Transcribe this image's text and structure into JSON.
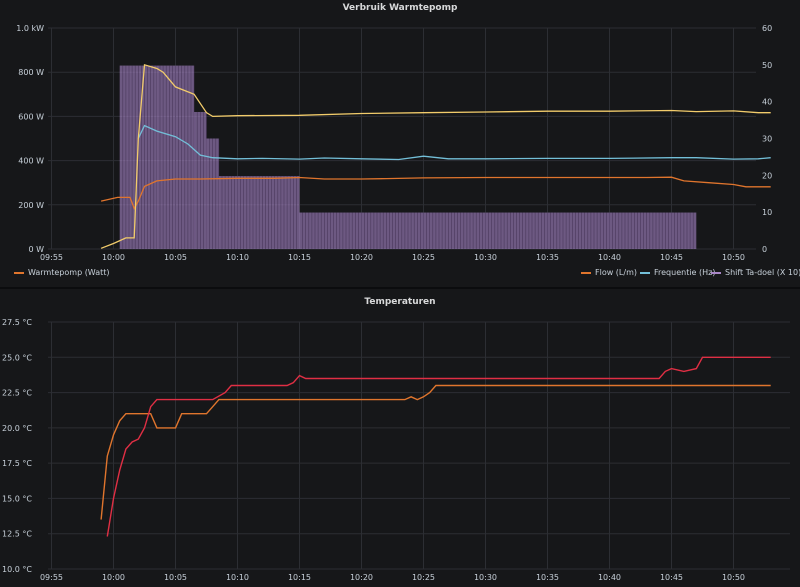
{
  "chart_data": [
    {
      "type": "bar+line",
      "title": "Verbruik Warmtepomp",
      "x_ticks": [
        "09:55",
        "10:00",
        "10:05",
        "10:10",
        "10:15",
        "10:20",
        "10:25",
        "10:30",
        "10:35",
        "10:40",
        "10:45",
        "10:50"
      ],
      "y_left_ticks": [
        "0 W",
        "200 W",
        "400 W",
        "600 W",
        "800 W",
        "1.0 kW"
      ],
      "y_left_lim": [
        0,
        1000
      ],
      "y_right_ticks": [
        "0",
        "10",
        "20",
        "30",
        "40",
        "50",
        "60"
      ],
      "y_right_lim": [
        0,
        60
      ],
      "grid": true,
      "legend_left": [
        {
          "name": "Warmtepomp (Watt)",
          "color": "#e0752d"
        }
      ],
      "legend_right": [
        {
          "name": "Flow (L/m)",
          "color": "#e0752d"
        },
        {
          "name": "Frequentie (Hz)",
          "color": "#73bfd8"
        },
        {
          "name": "Shift Ta-doel (X 10)",
          "color": "#a987c8"
        }
      ],
      "bars": {
        "name": "Warmtepomp (Watt)",
        "color": "#b68fd8",
        "segments": [
          {
            "start": "10:00:30",
            "end": "10:03:30",
            "value": 830
          },
          {
            "start": "10:03:30",
            "end": "10:06:30",
            "value": 830
          },
          {
            "start": "10:06:30",
            "end": "10:07:30",
            "value": 620
          },
          {
            "start": "10:07:30",
            "end": "10:08:30",
            "value": 500
          },
          {
            "start": "10:08:30",
            "end": "10:15:00",
            "value": 330
          },
          {
            "start": "10:15:00",
            "end": "10:47:00",
            "value": 165
          }
        ]
      },
      "series": [
        {
          "name": "Flow (L/m)",
          "axis": "right",
          "color": "#e0752d",
          "points": [
            [
              "09:59:00",
              13
            ],
            [
              "09:59:40",
              13.5
            ],
            [
              "10:00:20",
              14
            ],
            [
              "10:01:20",
              14
            ],
            [
              "10:01:40",
              11
            ],
            [
              "10:02:00",
              13
            ],
            [
              "10:02:30",
              17
            ],
            [
              "10:03:30",
              18.5
            ],
            [
              "10:05:00",
              19
            ],
            [
              "10:07:00",
              19
            ],
            [
              "10:10:00",
              19.2
            ],
            [
              "10:13:00",
              19.2
            ],
            [
              "10:15:00",
              19.4
            ],
            [
              "10:17:00",
              19
            ],
            [
              "10:20:00",
              19
            ],
            [
              "10:22:00",
              19.1
            ],
            [
              "10:25:00",
              19.3
            ],
            [
              "10:30:00",
              19.4
            ],
            [
              "10:35:00",
              19.4
            ],
            [
              "10:40:00",
              19.4
            ],
            [
              "10:43:00",
              19.4
            ],
            [
              "10:45:00",
              19.5
            ],
            [
              "10:46:00",
              18.5
            ],
            [
              "10:48:00",
              18
            ],
            [
              "10:50:00",
              17.5
            ],
            [
              "10:51:00",
              16.9
            ],
            [
              "10:53:00",
              16.9
            ]
          ]
        },
        {
          "name": "Frequentie (Hz)",
          "axis": "right",
          "color": "#73bfd8",
          "points": [
            [
              "10:02:00",
              30
            ],
            [
              "10:02:30",
              33.5
            ],
            [
              "10:03:30",
              32
            ],
            [
              "10:05:00",
              30.5
            ],
            [
              "10:06:00",
              28.5
            ],
            [
              "10:07:00",
              25.5
            ],
            [
              "10:08:00",
              24.8
            ],
            [
              "10:10:00",
              24.5
            ],
            [
              "10:12:00",
              24.6
            ],
            [
              "10:15:00",
              24.4
            ],
            [
              "10:17:00",
              24.7
            ],
            [
              "10:20:00",
              24.5
            ],
            [
              "10:23:00",
              24.3
            ],
            [
              "10:25:00",
              25.2
            ],
            [
              "10:27:00",
              24.5
            ],
            [
              "10:30:00",
              24.5
            ],
            [
              "10:35:00",
              24.6
            ],
            [
              "10:40:00",
              24.6
            ],
            [
              "10:45:00",
              24.8
            ],
            [
              "10:47:00",
              24.8
            ],
            [
              "10:50:00",
              24.4
            ],
            [
              "10:52:00",
              24.5
            ],
            [
              "10:53:00",
              24.8
            ]
          ]
        },
        {
          "name": "Shift Ta-doel (X 10)",
          "axis": "right",
          "color": "#f2cc6b",
          "points": [
            [
              "09:59:00",
              0.2
            ],
            [
              "10:00:00",
              1.5
            ],
            [
              "10:01:00",
              3
            ],
            [
              "10:01:40",
              3
            ],
            [
              "10:02:00",
              30
            ],
            [
              "10:02:30",
              50
            ],
            [
              "10:03:30",
              49
            ],
            [
              "10:04:00",
              48
            ],
            [
              "10:05:00",
              44
            ],
            [
              "10:06:30",
              42
            ],
            [
              "10:07:30",
              37
            ],
            [
              "10:08:00",
              36
            ],
            [
              "10:10:00",
              36.2
            ],
            [
              "10:15:00",
              36.3
            ],
            [
              "10:20:00",
              36.8
            ],
            [
              "10:25:00",
              37
            ],
            [
              "10:30:00",
              37.2
            ],
            [
              "10:35:00",
              37.4
            ],
            [
              "10:40:00",
              37.4
            ],
            [
              "10:45:00",
              37.6
            ],
            [
              "10:47:00",
              37.3
            ],
            [
              "10:50:00",
              37.5
            ],
            [
              "10:52:00",
              37
            ],
            [
              "10:53:00",
              37
            ]
          ]
        }
      ]
    },
    {
      "type": "line",
      "title": "Temperaturen",
      "x_ticks": [
        "09:55",
        "10:00",
        "10:05",
        "10:10",
        "10:15",
        "10:20",
        "10:25",
        "10:30",
        "10:35",
        "10:40",
        "10:45",
        "10:50"
      ],
      "y_ticks": [
        "10.0 °C",
        "12.5 °C",
        "15.0 °C",
        "17.5 °C",
        "20.0 °C",
        "22.5 °C",
        "25.0 °C",
        "27.5 °C"
      ],
      "ylim": [
        10,
        27.5
      ],
      "grid": true,
      "series": [
        {
          "color": "#e0752d",
          "points": [
            [
              "09:59:00",
              13.5
            ],
            [
              "09:59:30",
              18
            ],
            [
              "10:00:00",
              19.5
            ],
            [
              "10:00:30",
              20.5
            ],
            [
              "10:01:00",
              21
            ],
            [
              "10:03:00",
              21
            ],
            [
              "10:03:30",
              20
            ],
            [
              "10:05:00",
              20
            ],
            [
              "10:05:30",
              21
            ],
            [
              "10:07:30",
              21
            ],
            [
              "10:08:00",
              21.5
            ],
            [
              "10:08:30",
              22
            ],
            [
              "10:15:00",
              22
            ],
            [
              "10:20:00",
              22
            ],
            [
              "10:23:30",
              22
            ],
            [
              "10:24:00",
              22.2
            ],
            [
              "10:24:30",
              22
            ],
            [
              "10:25:00",
              22.2
            ],
            [
              "10:25:30",
              22.5
            ],
            [
              "10:26:00",
              23
            ],
            [
              "10:30:00",
              23
            ],
            [
              "10:40:00",
              23
            ],
            [
              "10:50:00",
              23
            ],
            [
              "10:53:00",
              23
            ]
          ]
        },
        {
          "color": "#e02f44",
          "points": [
            [
              "09:59:30",
              12.3
            ],
            [
              "10:00:00",
              15
            ],
            [
              "10:00:30",
              17
            ],
            [
              "10:01:00",
              18.5
            ],
            [
              "10:01:30",
              19
            ],
            [
              "10:02:00",
              19.2
            ],
            [
              "10:02:30",
              20
            ],
            [
              "10:03:00",
              21.5
            ],
            [
              "10:03:30",
              22
            ],
            [
              "10:08:00",
              22
            ],
            [
              "10:09:00",
              22.5
            ],
            [
              "10:09:30",
              23
            ],
            [
              "10:14:00",
              23
            ],
            [
              "10:14:30",
              23.2
            ],
            [
              "10:15:00",
              23.7
            ],
            [
              "10:15:30",
              23.5
            ],
            [
              "10:20:00",
              23.5
            ],
            [
              "10:30:00",
              23.5
            ],
            [
              "10:40:00",
              23.5
            ],
            [
              "10:44:00",
              23.5
            ],
            [
              "10:44:30",
              24
            ],
            [
              "10:45:00",
              24.2
            ],
            [
              "10:46:00",
              24
            ],
            [
              "10:47:00",
              24.2
            ],
            [
              "10:47:30",
              25
            ],
            [
              "10:53:00",
              25
            ]
          ]
        }
      ]
    }
  ]
}
